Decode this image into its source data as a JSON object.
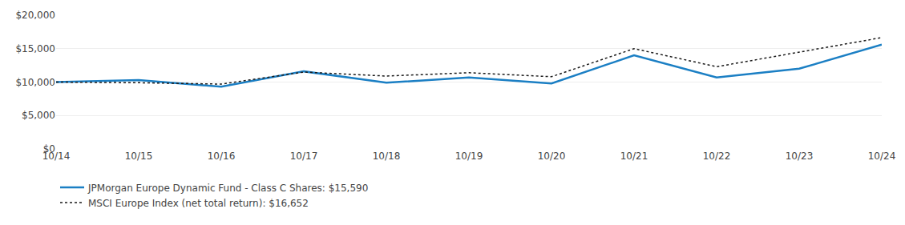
{
  "chart_data": {
    "type": "line",
    "categories": [
      "10/14",
      "10/15",
      "10/16",
      "10/17",
      "10/18",
      "10/19",
      "10/20",
      "10/21",
      "10/22",
      "10/23",
      "10/24"
    ],
    "series": [
      {
        "name": "JPMorgan Europe Dynamic Fund - Class C Shares: $15,590",
        "color": "#1b7fc4",
        "line_style": "solid",
        "values": [
          10000,
          10300,
          9300,
          11600,
          9900,
          10700,
          9800,
          14000,
          10700,
          12000,
          15590
        ]
      },
      {
        "name": "MSCI Europe Index (net total return): $16,652",
        "color": "#1a1a1a",
        "line_style": "dotted",
        "values": [
          10000,
          9900,
          9700,
          11500,
          10900,
          11400,
          10800,
          15000,
          12300,
          14500,
          16652
        ]
      }
    ],
    "ylim": [
      0,
      20000
    ],
    "yticks": [
      {
        "value": 0,
        "label": "$0"
      },
      {
        "value": 5000,
        "label": "$5,000"
      },
      {
        "value": 10000,
        "label": "$10,000"
      },
      {
        "value": 15000,
        "label": "$15,000"
      },
      {
        "value": 20000,
        "label": "$20,000"
      }
    ],
    "grid": true,
    "legend": "bottom"
  }
}
